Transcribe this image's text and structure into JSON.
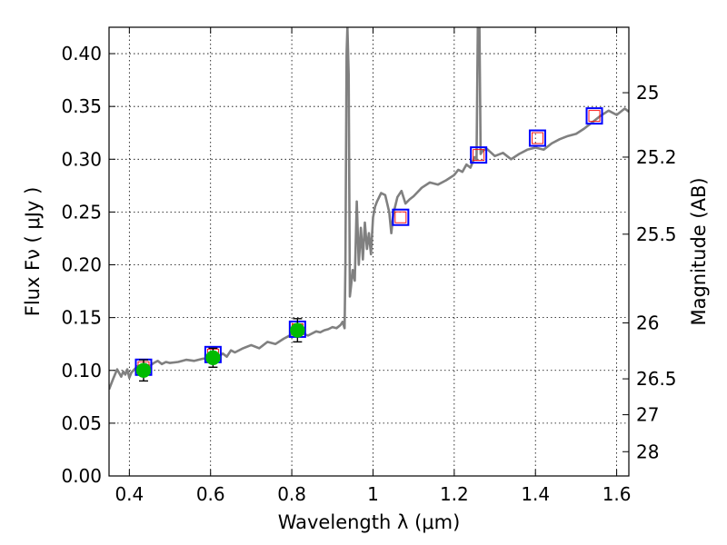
{
  "chart_data": {
    "type": "line",
    "xlabel": "Wavelength  λ (μm)",
    "ylabel": "Flux  Fν  ( μJy )",
    "y2label": "Magnitude (AB)",
    "xlim": [
      0.35,
      1.63
    ],
    "ylim": [
      0.0,
      0.425
    ],
    "x_ticks": [
      0.4,
      0.6,
      0.8,
      1.0,
      1.2,
      1.4,
      1.6
    ],
    "x_tick_labels": [
      "0.4",
      "0.6",
      "0.8",
      "1",
      "1.2",
      "1.4",
      "1.6"
    ],
    "y_ticks": [
      0.0,
      0.05,
      0.1,
      0.15,
      0.2,
      0.25,
      0.3,
      0.35,
      0.4
    ],
    "y_tick_labels": [
      "0.00",
      "0.05",
      "0.10",
      "0.15",
      "0.20",
      "0.25",
      "0.30",
      "0.35",
      "0.40"
    ],
    "y2_ticks": [
      {
        "label": "25",
        "flux": 0.363
      },
      {
        "label": "25.2",
        "flux": 0.302
      },
      {
        "label": "25.5",
        "flux": 0.229
      },
      {
        "label": "26",
        "flux": 0.145
      },
      {
        "label": "26.5",
        "flux": 0.092
      },
      {
        "label": "27",
        "flux": 0.058
      },
      {
        "label": "28",
        "flux": 0.023
      }
    ],
    "grid": true,
    "colors": {
      "model_spectrum": "#808080",
      "observed_points": "#00bb00",
      "model_photometry": "#0000ff",
      "model_photometry_inner": "#ff0000"
    },
    "series": [
      {
        "style": "line",
        "x": [
          0.35,
          0.36,
          0.37,
          0.38,
          0.385,
          0.39,
          0.395,
          0.4,
          0.405,
          0.41,
          0.42,
          0.43,
          0.44,
          0.45,
          0.46,
          0.47,
          0.48,
          0.49,
          0.5,
          0.52,
          0.54,
          0.56,
          0.58,
          0.6,
          0.62,
          0.63,
          0.64,
          0.65,
          0.66,
          0.68,
          0.7,
          0.72,
          0.74,
          0.76,
          0.78,
          0.8,
          0.82,
          0.84,
          0.86,
          0.87,
          0.88,
          0.89,
          0.9,
          0.91,
          0.92,
          0.925,
          0.93,
          0.932,
          0.935,
          0.937,
          0.94,
          0.943,
          0.946,
          0.95,
          0.955,
          0.96,
          0.965,
          0.97,
          0.975,
          0.98,
          0.985,
          0.99,
          0.995,
          1.0,
          1.005,
          1.01,
          1.02,
          1.03,
          1.04,
          1.045,
          1.05,
          1.06,
          1.07,
          1.08,
          1.09,
          1.1,
          1.12,
          1.14,
          1.16,
          1.18,
          1.2,
          1.21,
          1.22,
          1.23,
          1.24,
          1.25,
          1.255,
          1.258,
          1.26,
          1.262,
          1.265,
          1.27,
          1.28,
          1.3,
          1.32,
          1.34,
          1.36,
          1.38,
          1.4,
          1.42,
          1.44,
          1.46,
          1.48,
          1.5,
          1.52,
          1.54,
          1.56,
          1.58,
          1.6,
          1.62,
          1.63
        ],
        "y": [
          0.082,
          0.092,
          0.101,
          0.094,
          0.099,
          0.096,
          0.101,
          0.093,
          0.098,
          0.1,
          0.104,
          0.102,
          0.106,
          0.104,
          0.107,
          0.109,
          0.106,
          0.108,
          0.107,
          0.108,
          0.11,
          0.109,
          0.111,
          0.112,
          0.113,
          0.116,
          0.113,
          0.119,
          0.117,
          0.121,
          0.124,
          0.121,
          0.127,
          0.125,
          0.13,
          0.134,
          0.136,
          0.133,
          0.137,
          0.136,
          0.138,
          0.139,
          0.141,
          0.14,
          0.143,
          0.146,
          0.14,
          0.2,
          0.4,
          0.425,
          0.38,
          0.17,
          0.18,
          0.195,
          0.185,
          0.26,
          0.2,
          0.235,
          0.205,
          0.24,
          0.215,
          0.23,
          0.21,
          0.245,
          0.255,
          0.26,
          0.268,
          0.266,
          0.25,
          0.23,
          0.248,
          0.264,
          0.27,
          0.258,
          0.262,
          0.265,
          0.273,
          0.278,
          0.276,
          0.28,
          0.285,
          0.29,
          0.288,
          0.295,
          0.292,
          0.302,
          0.3,
          0.425,
          0.425,
          0.425,
          0.305,
          0.308,
          0.31,
          0.303,
          0.306,
          0.3,
          0.305,
          0.309,
          0.311,
          0.309,
          0.315,
          0.319,
          0.322,
          0.324,
          0.329,
          0.335,
          0.341,
          0.346,
          0.342,
          0.348,
          0.345
        ]
      },
      {
        "style": "points-errorbar",
        "x": [
          0.435,
          0.606,
          0.814
        ],
        "y": [
          0.1,
          0.112,
          0.138
        ],
        "yerr": [
          0.01,
          0.009,
          0.011
        ]
      },
      {
        "style": "open-squares",
        "x": [
          0.435,
          0.606,
          0.814,
          1.068,
          1.26,
          1.405,
          1.545
        ],
        "y": [
          0.103,
          0.115,
          0.139,
          0.245,
          0.304,
          0.32,
          0.341
        ]
      }
    ]
  }
}
